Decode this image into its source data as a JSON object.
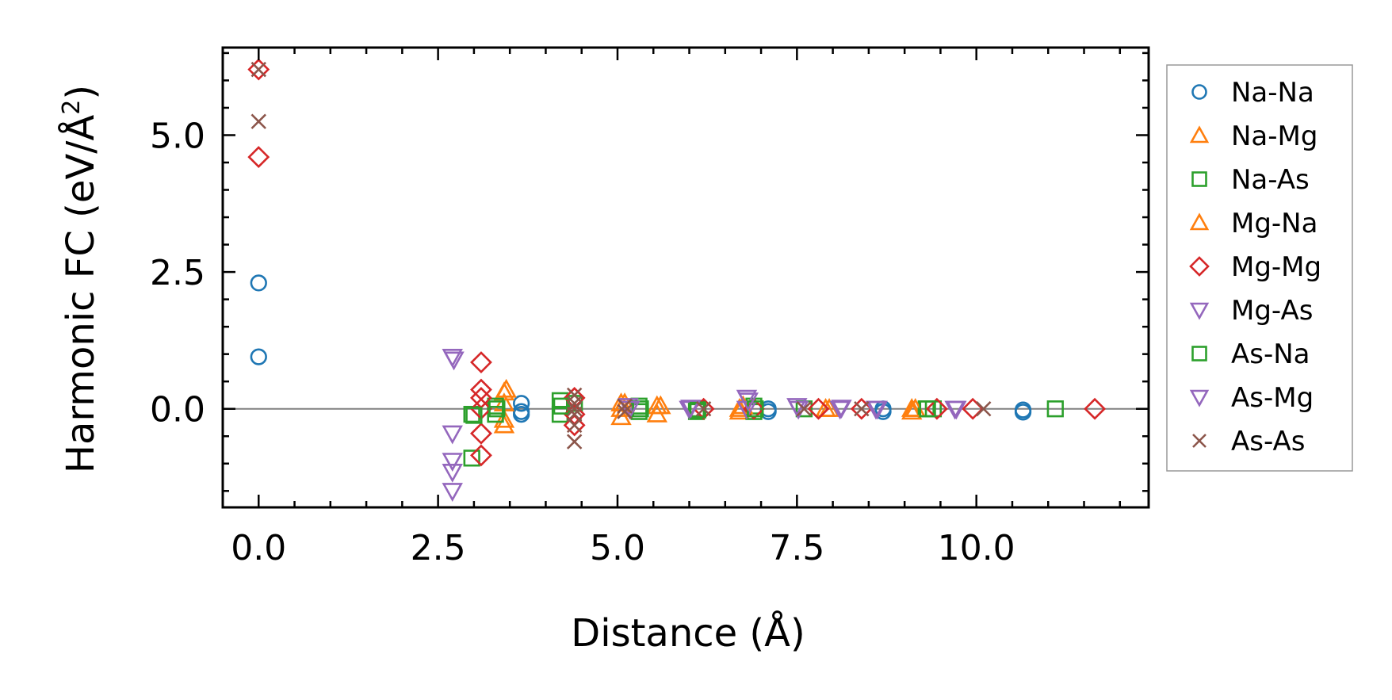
{
  "chart_data": {
    "type": "scatter",
    "title": "",
    "xlabel": "Distance (Å)",
    "ylabel_main": "Harmonic FC (eV/Å",
    "ylabel_sup": "2",
    "ylabel_close": ")",
    "xlim": [
      -0.5,
      12.4
    ],
    "ylim": [
      -1.8,
      6.6
    ],
    "xticks": [
      0.0,
      2.5,
      5.0,
      7.5,
      10.0
    ],
    "xtick_labels": [
      "0.0",
      "2.5",
      "5.0",
      "7.5",
      "10.0"
    ],
    "yticks": [
      0.0,
      2.5,
      5.0
    ],
    "ytick_labels": [
      "0.0",
      "2.5",
      "5.0"
    ],
    "zero_line": true,
    "legend_position": "outside-right",
    "series": [
      {
        "name": "Na-Na",
        "color": "#1f77b4",
        "marker": "circle",
        "x": [
          0.0,
          0.0,
          3.66,
          3.66,
          3.66,
          7.1,
          7.1,
          8.7,
          8.7,
          10.65,
          10.65
        ],
        "y": [
          2.3,
          0.95,
          0.1,
          -0.05,
          -0.1,
          0.0,
          -0.05,
          0.0,
          -0.05,
          -0.02,
          -0.06
        ]
      },
      {
        "name": "Na-Mg",
        "color": "#ff7f0e",
        "marker": "triangle-up",
        "x": [
          3.42,
          3.42,
          3.42,
          3.42,
          5.05,
          5.05,
          5.05,
          5.55,
          5.55,
          6.7,
          6.7,
          7.9,
          9.1,
          9.1
        ],
        "y": [
          0.3,
          0.1,
          -0.2,
          -0.3,
          0.1,
          0.0,
          -0.15,
          0.05,
          -0.1,
          0.0,
          -0.05,
          0.0,
          0.0,
          -0.05
        ]
      },
      {
        "name": "Na-As",
        "color": "#2ca02c",
        "marker": "square",
        "x": [
          2.97,
          2.97,
          3.3,
          3.3,
          4.2,
          4.2,
          4.4,
          5.3,
          5.3,
          6.1,
          6.1,
          6.9,
          6.9,
          7.6,
          9.3,
          9.4,
          11.1
        ],
        "y": [
          -0.9,
          -0.1,
          0.05,
          -0.1,
          0.15,
          -0.1,
          0.1,
          0.05,
          -0.05,
          0.0,
          -0.05,
          0.05,
          -0.05,
          0.0,
          0.0,
          0.0,
          0.0
        ]
      },
      {
        "name": "Mg-Na",
        "color": "#ff7f0e",
        "marker": "triangle-up",
        "x": [
          3.45,
          5.1,
          5.6,
          6.75,
          7.95,
          9.15
        ],
        "y": [
          0.35,
          0.1,
          0.05,
          0.05,
          0.0,
          0.0
        ]
      },
      {
        "name": "Mg-Mg",
        "color": "#d62728",
        "marker": "diamond",
        "x": [
          0.0,
          0.0,
          3.1,
          3.1,
          3.1,
          3.1,
          3.1,
          3.1,
          4.4,
          4.4,
          4.4,
          6.2,
          6.9,
          7.8,
          8.4,
          9.45,
          9.95,
          11.65
        ],
        "y": [
          6.2,
          4.6,
          0.85,
          0.35,
          0.2,
          -0.45,
          -0.85,
          0.0,
          0.2,
          -0.1,
          -0.3,
          0.0,
          0.0,
          0.0,
          0.0,
          0.0,
          0.0,
          0.0
        ]
      },
      {
        "name": "Mg-As",
        "color": "#9467bd",
        "marker": "triangle-down",
        "x": [
          2.7,
          2.7,
          2.7,
          2.7,
          2.7,
          5.15,
          6.0,
          6.8,
          6.8,
          7.5,
          8.1,
          8.6,
          9.7
        ],
        "y": [
          0.95,
          -0.45,
          -0.95,
          -1.15,
          -1.5,
          0.05,
          0.0,
          0.2,
          0.0,
          0.05,
          0.0,
          0.0,
          0.0
        ]
      },
      {
        "name": "As-Na",
        "color": "#2ca02c",
        "marker": "square",
        "x": [
          3.0,
          3.32,
          4.22,
          5.32,
          6.12,
          6.92,
          9.32
        ],
        "y": [
          -0.12,
          0.0,
          0.05,
          0.0,
          -0.02,
          0.0,
          0.0
        ]
      },
      {
        "name": "As-Mg",
        "color": "#9467bd",
        "marker": "triangle-down",
        "x": [
          2.72,
          5.17,
          6.02,
          6.82,
          7.52,
          8.12,
          8.62,
          9.72
        ],
        "y": [
          0.9,
          0.0,
          0.02,
          0.15,
          0.0,
          0.02,
          0.0,
          0.0
        ]
      },
      {
        "name": "As-As",
        "color": "#8c564b",
        "marker": "x",
        "x": [
          0.0,
          0.0,
          4.4,
          4.4,
          4.4,
          4.4,
          4.4,
          4.4,
          5.1,
          5.1,
          6.2,
          7.6,
          8.4,
          10.1
        ],
        "y": [
          6.2,
          5.25,
          0.25,
          0.1,
          0.0,
          -0.1,
          -0.3,
          -0.6,
          0.05,
          -0.05,
          0.0,
          0.0,
          0.0,
          0.0
        ]
      }
    ]
  }
}
